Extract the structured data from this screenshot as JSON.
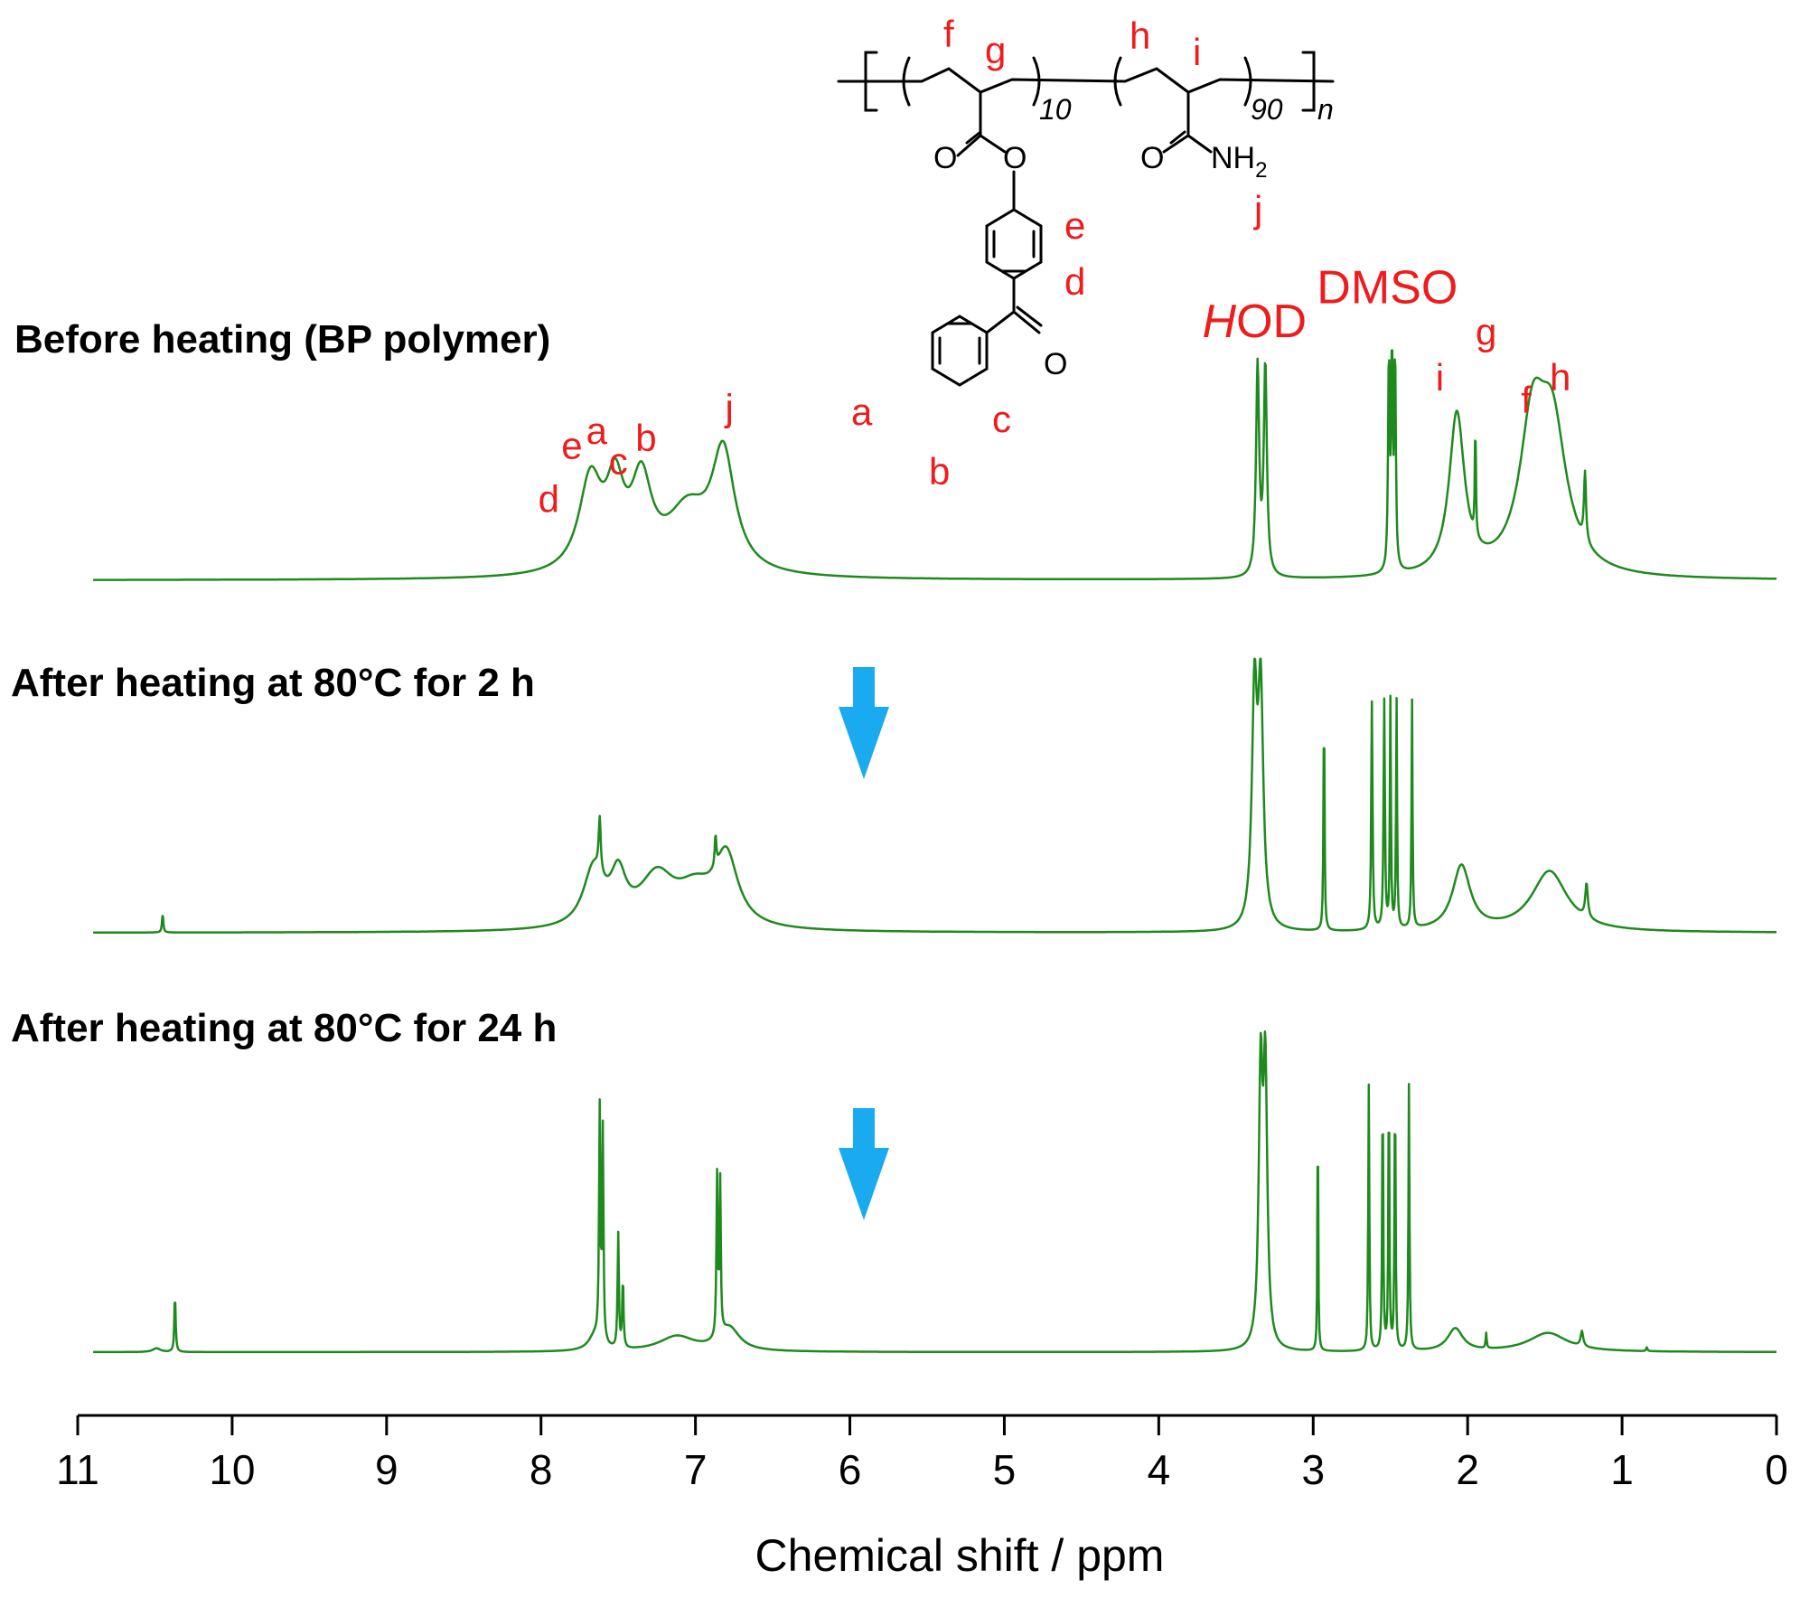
{
  "chart_data": {
    "type": "line",
    "xlabel": "Chemical shift / ppm",
    "xlim": [
      11,
      0
    ],
    "x_reversed": true,
    "x_ticks": [
      "11",
      "10",
      "9",
      "8",
      "7",
      "6",
      "5",
      "4",
      "3",
      "2",
      "1",
      "0"
    ],
    "grid": false,
    "line_color": "#1e8a1e",
    "label_color": "#ee1c1c",
    "arrow_color": "#1aaaf0",
    "series": [
      {
        "name": "Before heating (BP polymer)",
        "peaks": [
          {
            "ppm": 7.68,
            "height": 0.24,
            "width": 0.09
          },
          {
            "ppm": 7.52,
            "height": 0.2,
            "width": 0.07
          },
          {
            "ppm": 7.35,
            "height": 0.22,
            "width": 0.08
          },
          {
            "ppm": 7.05,
            "height": 0.16,
            "width": 0.17
          },
          {
            "ppm": 6.82,
            "height": 0.3,
            "width": 0.09
          },
          {
            "ppm": 3.36,
            "height": 0.55,
            "width": 0.012
          },
          {
            "ppm": 3.31,
            "height": 0.55,
            "width": 0.012
          },
          {
            "ppm": 2.51,
            "height": 0.55,
            "width": 0.006
          },
          {
            "ppm": 2.49,
            "height": 0.55,
            "width": 0.006
          },
          {
            "ppm": 2.47,
            "height": 0.55,
            "width": 0.006
          },
          {
            "ppm": 2.07,
            "height": 0.42,
            "width": 0.06
          },
          {
            "ppm": 1.95,
            "height": 0.3,
            "width": 0.004
          },
          {
            "ppm": 1.58,
            "height": 0.36,
            "width": 0.1
          },
          {
            "ppm": 1.45,
            "height": 0.36,
            "width": 0.11
          },
          {
            "ppm": 1.24,
            "height": 0.18,
            "width": 0.008
          }
        ],
        "labels": [
          {
            "text": "d",
            "ppm": 7.95,
            "level": 0.18
          },
          {
            "text": "e",
            "ppm": 7.8,
            "level": 0.32
          },
          {
            "text": "a",
            "ppm": 7.64,
            "level": 0.36
          },
          {
            "text": "c",
            "ppm": 7.5,
            "level": 0.28
          },
          {
            "text": "b",
            "ppm": 7.32,
            "level": 0.34
          },
          {
            "text": "j",
            "ppm": 6.78,
            "level": 0.42
          },
          {
            "text": "i",
            "ppm": 2.18,
            "level": 0.5
          },
          {
            "text": "g",
            "ppm": 1.88,
            "level": 0.62
          },
          {
            "text": "f",
            "ppm": 1.62,
            "level": 0.44
          },
          {
            "text": "h",
            "ppm": 1.4,
            "level": 0.5
          }
        ],
        "solvent_labels": [
          {
            "ital": "H",
            "text": "OD",
            "ppm": 3.38,
            "level": 0.64
          },
          {
            "ital": "",
            "text": "DMSO",
            "ppm": 2.52,
            "level": 0.73
          }
        ]
      },
      {
        "name": "After heating at 80°C for 2 h",
        "peaks": [
          {
            "ppm": 10.45,
            "height": 0.05,
            "width": 0.005
          },
          {
            "ppm": 7.66,
            "height": 0.15,
            "width": 0.08
          },
          {
            "ppm": 7.62,
            "height": 0.14,
            "width": 0.008
          },
          {
            "ppm": 7.5,
            "height": 0.12,
            "width": 0.06
          },
          {
            "ppm": 7.25,
            "height": 0.13,
            "width": 0.14
          },
          {
            "ppm": 7.0,
            "height": 0.09,
            "width": 0.15
          },
          {
            "ppm": 6.8,
            "height": 0.18,
            "width": 0.09
          },
          {
            "ppm": 6.87,
            "height": 0.08,
            "width": 0.006
          },
          {
            "ppm": 3.38,
            "height": 0.6,
            "width": 0.02
          },
          {
            "ppm": 3.34,
            "height": 0.6,
            "width": 0.02
          },
          {
            "ppm": 2.93,
            "height": 0.6,
            "width": 0.004
          },
          {
            "ppm": 2.62,
            "height": 0.6,
            "width": 0.005
          },
          {
            "ppm": 2.54,
            "height": 0.6,
            "width": 0.005
          },
          {
            "ppm": 2.5,
            "height": 0.6,
            "width": 0.004
          },
          {
            "ppm": 2.46,
            "height": 0.6,
            "width": 0.004
          },
          {
            "ppm": 2.36,
            "height": 0.6,
            "width": 0.004
          },
          {
            "ppm": 2.04,
            "height": 0.17,
            "width": 0.07
          },
          {
            "ppm": 1.47,
            "height": 0.16,
            "width": 0.14
          },
          {
            "ppm": 1.23,
            "height": 0.09,
            "width": 0.01
          }
        ]
      },
      {
        "name": "After heating at 80°C for 24 h",
        "peaks": [
          {
            "ppm": 10.49,
            "height": 0.01,
            "width": 0.03
          },
          {
            "ppm": 10.37,
            "height": 0.15,
            "width": 0.005
          },
          {
            "ppm": 7.62,
            "height": 0.6,
            "width": 0.005
          },
          {
            "ppm": 7.6,
            "height": 0.55,
            "width": 0.005
          },
          {
            "ppm": 7.5,
            "height": 0.3,
            "width": 0.005
          },
          {
            "ppm": 7.47,
            "height": 0.18,
            "width": 0.005
          },
          {
            "ppm": 7.65,
            "height": 0.04,
            "width": 0.05
          },
          {
            "ppm": 7.12,
            "height": 0.04,
            "width": 0.14
          },
          {
            "ppm": 6.86,
            "height": 0.42,
            "width": 0.005
          },
          {
            "ppm": 6.84,
            "height": 0.4,
            "width": 0.005
          },
          {
            "ppm": 6.78,
            "height": 0.06,
            "width": 0.08
          },
          {
            "ppm": 3.34,
            "height": 0.7,
            "width": 0.015
          },
          {
            "ppm": 3.31,
            "height": 0.7,
            "width": 0.015
          },
          {
            "ppm": 2.97,
            "height": 0.7,
            "width": 0.003
          },
          {
            "ppm": 2.64,
            "height": 0.7,
            "width": 0.004
          },
          {
            "ppm": 2.55,
            "height": 0.7,
            "width": 0.004
          },
          {
            "ppm": 2.51,
            "height": 0.7,
            "width": 0.004
          },
          {
            "ppm": 2.47,
            "height": 0.7,
            "width": 0.004
          },
          {
            "ppm": 2.38,
            "height": 0.7,
            "width": 0.004
          },
          {
            "ppm": 2.08,
            "height": 0.06,
            "width": 0.06
          },
          {
            "ppm": 1.88,
            "height": 0.04,
            "width": 0.004
          },
          {
            "ppm": 1.48,
            "height": 0.05,
            "width": 0.15
          },
          {
            "ppm": 1.26,
            "height": 0.04,
            "width": 0.01
          },
          {
            "ppm": 0.84,
            "height": 0.01,
            "width": 0.005
          }
        ]
      }
    ],
    "structure": {
      "atom_labels": {
        "carbonyl_o1": "O",
        "ester_o": "O",
        "carbonyl_o2": "O",
        "amide_n": "NH",
        "amide_sub": "2",
        "ketone_o": "O"
      },
      "subscripts": {
        "block1": "10",
        "block2": "90",
        "polymer": "n"
      },
      "position_labels": {
        "f": "f",
        "g": "g",
        "h": "h",
        "i": "i",
        "j": "j",
        "e": "e",
        "d": "d",
        "a": "a",
        "b": "b",
        "c": "c"
      }
    }
  }
}
